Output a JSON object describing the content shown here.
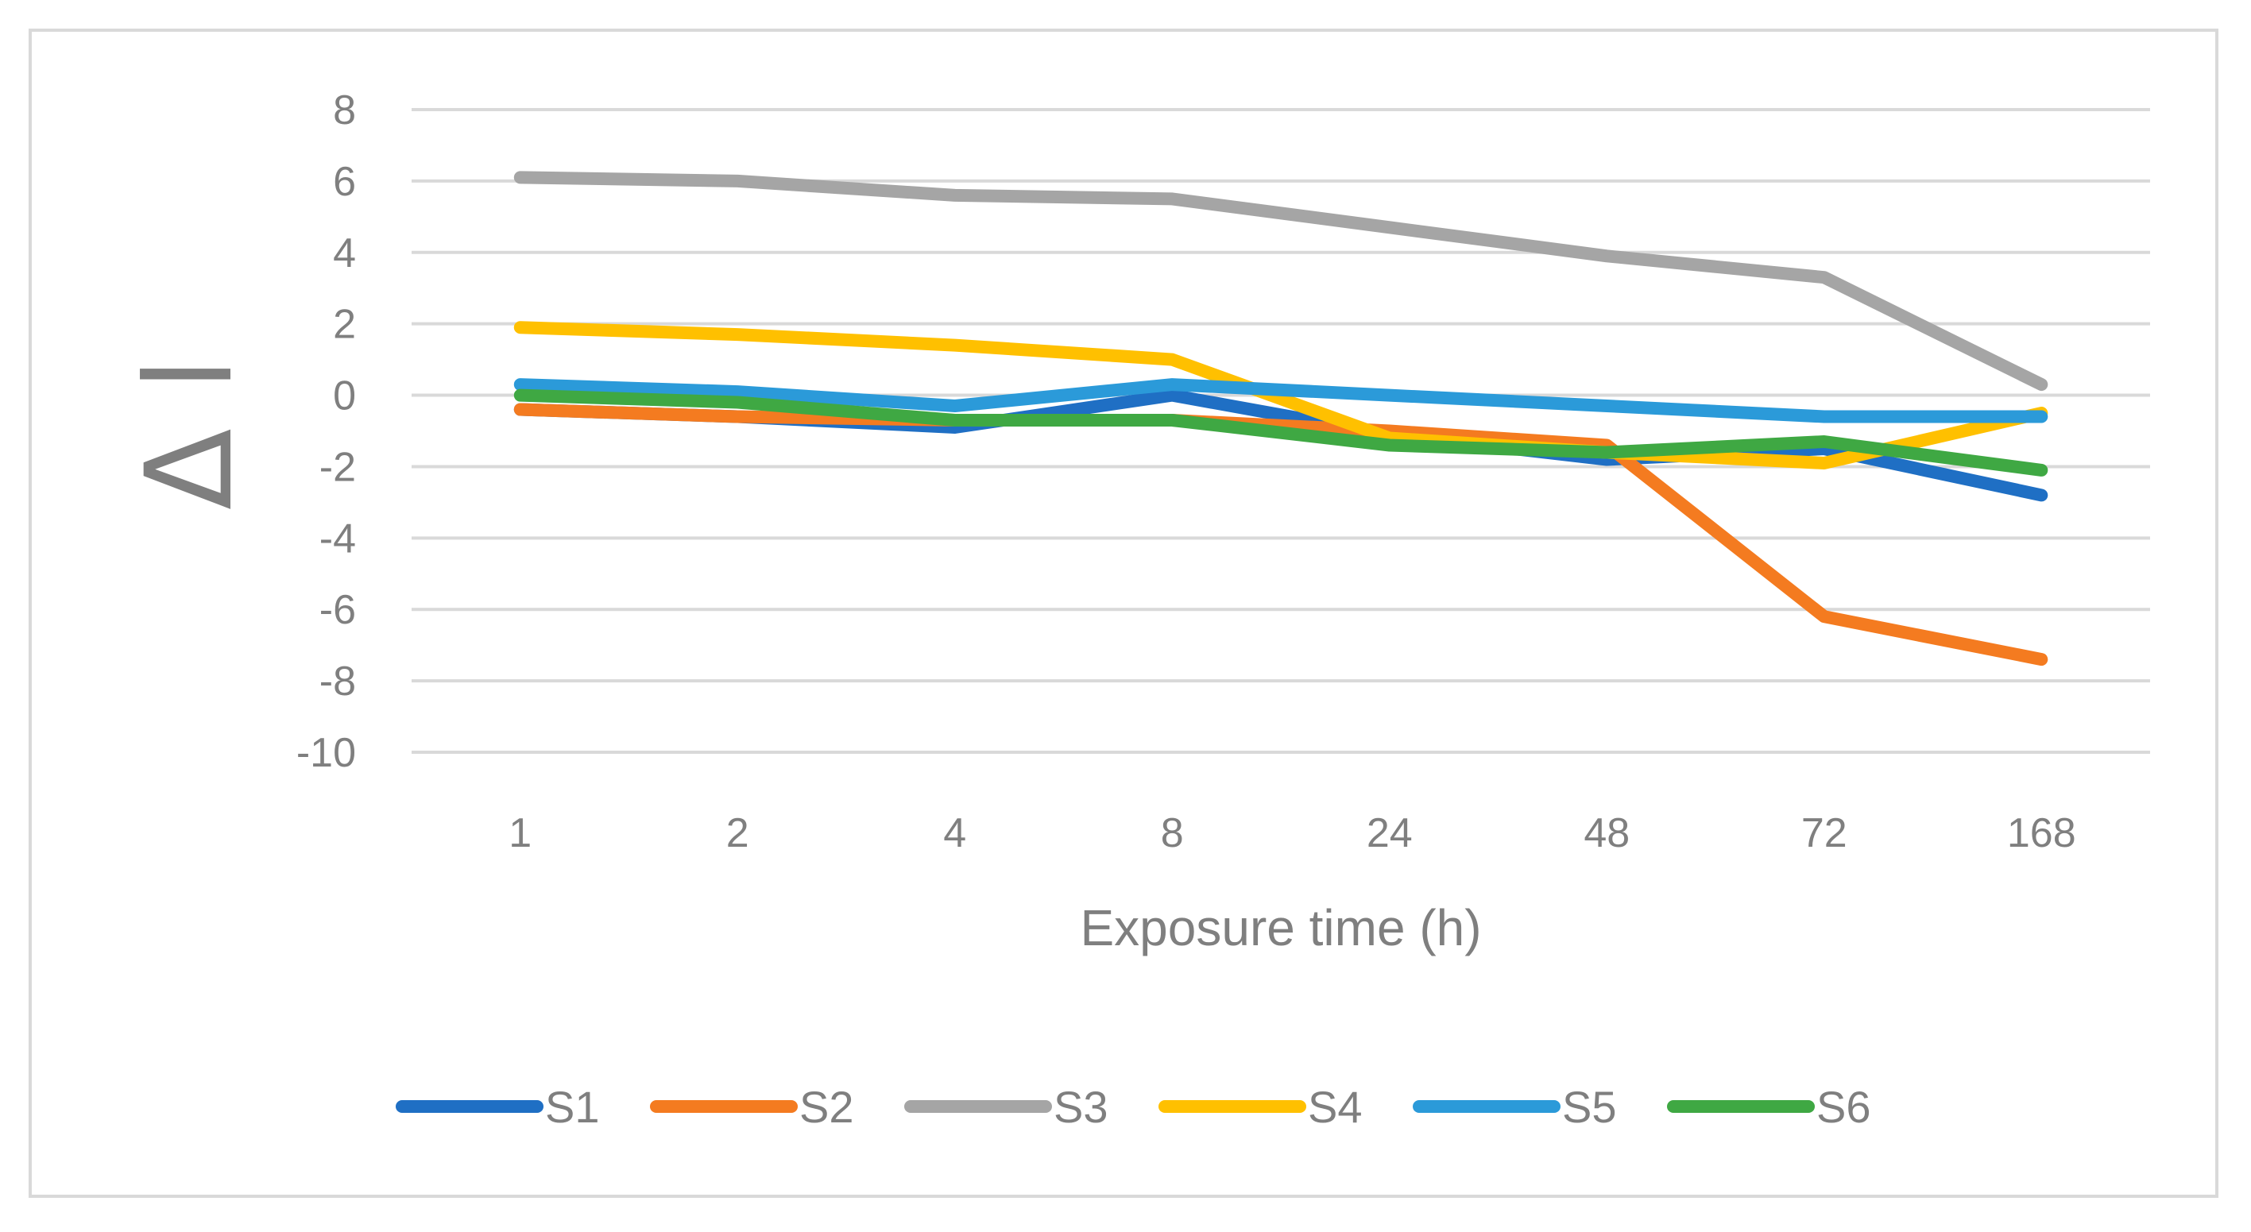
{
  "chart_data": {
    "type": "line",
    "title": "",
    "xlabel": "Exposure time (h)",
    "ylabel": "Δ l",
    "categories": [
      "1",
      "2",
      "4",
      "8",
      "24",
      "48",
      "72",
      "168"
    ],
    "ylim": [
      -10,
      8
    ],
    "yticks": [
      8,
      6,
      4,
      2,
      0,
      -2,
      -4,
      -6,
      -8,
      -10
    ],
    "grid": true,
    "legend_position": "bottom",
    "series": [
      {
        "name": "S1",
        "color": "#1f6fc4",
        "values": [
          -0.4,
          -0.6,
          -0.9,
          0.0,
          -1.1,
          -1.8,
          -1.5,
          -2.8
        ]
      },
      {
        "name": "S2",
        "color": "#f47b20",
        "values": [
          -0.4,
          -0.6,
          -0.7,
          -0.7,
          -1.0,
          -1.4,
          -6.2,
          -7.4
        ]
      },
      {
        "name": "S3",
        "color": "#a5a5a5",
        "values": [
          6.1,
          6.0,
          5.6,
          5.5,
          4.7,
          3.9,
          3.3,
          0.3
        ]
      },
      {
        "name": "S4",
        "color": "#ffc000",
        "values": [
          1.9,
          1.7,
          1.4,
          1.0,
          -1.2,
          -1.6,
          -1.9,
          -0.5
        ]
      },
      {
        "name": "S5",
        "color": "#2b9ad9",
        "values": [
          0.3,
          0.1,
          -0.3,
          0.3,
          0.0,
          -0.3,
          -0.6,
          -0.6
        ]
      },
      {
        "name": "S6",
        "color": "#3fa843",
        "values": [
          0.0,
          -0.2,
          -0.7,
          -0.7,
          -1.4,
          -1.6,
          -1.3,
          -2.1
        ]
      }
    ]
  }
}
